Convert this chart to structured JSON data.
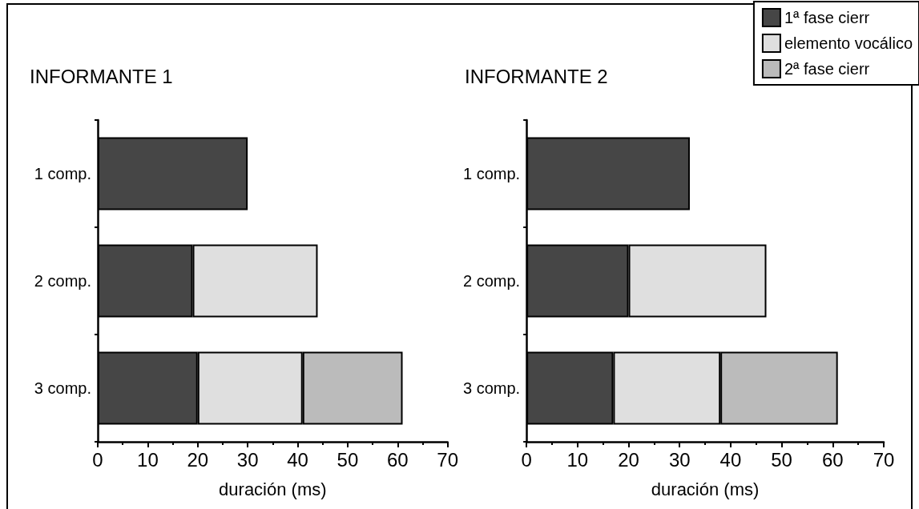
{
  "chart_data": [
    {
      "type": "bar",
      "orientation": "horizontal",
      "stacked": true,
      "title": "INFORMANTE 1",
      "xlabel": "duración (ms)",
      "categories": [
        "1 comp.",
        "2 comp.",
        "3 comp."
      ],
      "xlim": [
        0,
        70
      ],
      "xticks": [
        0,
        10,
        20,
        30,
        40,
        50,
        60,
        70
      ],
      "grid": false,
      "legend": false,
      "series": [
        {
          "color": "#464646",
          "values": [
            30,
            19,
            20
          ]
        },
        {
          "color": "#dfdfdf",
          "values": [
            null,
            25,
            21
          ]
        },
        {
          "color": "#bbbbbb",
          "values": [
            null,
            null,
            20
          ]
        }
      ]
    },
    {
      "type": "bar",
      "orientation": "horizontal",
      "stacked": true,
      "title": "INFORMANTE 2",
      "xlabel": "duración (ms)",
      "categories": [
        "1 comp.",
        "2 comp.",
        "3 comp."
      ],
      "xlim": [
        0,
        70
      ],
      "xticks": [
        0,
        10,
        20,
        30,
        40,
        50,
        60,
        70
      ],
      "grid": false,
      "legend": "top right",
      "series": [
        {
          "name": "1ª fase cierr",
          "color": "#464646",
          "values": [
            32,
            20,
            17
          ]
        },
        {
          "name": "elemento vocálico",
          "color": "#dfdfdf",
          "values": [
            null,
            27,
            21
          ]
        },
        {
          "name": "2ª fase cierr",
          "color": "#bbbbbb",
          "values": [
            null,
            null,
            23
          ]
        }
      ]
    }
  ]
}
